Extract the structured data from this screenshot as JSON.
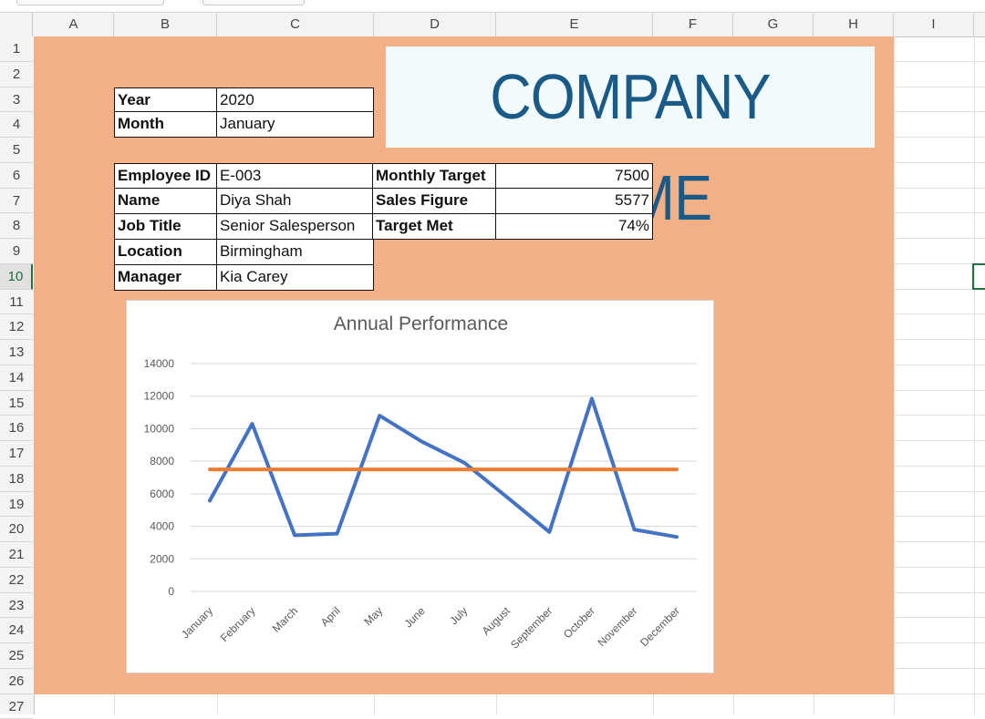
{
  "columns": [
    "A",
    "B",
    "C",
    "D",
    "E",
    "F",
    "G",
    "H",
    "I"
  ],
  "rows": [
    "1",
    "2",
    "3",
    "4",
    "5",
    "6",
    "7",
    "8",
    "9",
    "10",
    "11",
    "12",
    "13",
    "14",
    "15",
    "16",
    "17",
    "18",
    "19",
    "20",
    "21",
    "22",
    "23",
    "24",
    "25",
    "26",
    "27"
  ],
  "active_row": "10",
  "colors": {
    "panel": "#f3af86",
    "logo_text": "#1a5a86",
    "sales_line": "#4472c4",
    "target_line": "#ed7d31",
    "selection": "#217346"
  },
  "logo": {
    "text": "COMPANY NAME"
  },
  "period": {
    "year_label": "Year",
    "year_value": "2020",
    "month_label": "Month",
    "month_value": "January"
  },
  "employee": {
    "id_label": "Employee ID",
    "id_value": "E-003",
    "name_label": "Name",
    "name_value": "Diya Shah",
    "title_label": "Job Title",
    "title_value": "Senior Salesperson",
    "location_label": "Location",
    "location_value": "Birmingham",
    "manager_label": "Manager",
    "manager_value": "Kia Carey"
  },
  "targets": {
    "monthly_target_label": "Monthly Target",
    "monthly_target_value": "7500",
    "sales_figure_label": "Sales Figure",
    "sales_figure_value": "5577",
    "target_met_label": "Target Met",
    "target_met_value": "74%"
  },
  "chart_data": {
    "type": "line",
    "title": "Annual Performance",
    "categories": [
      "January",
      "February",
      "March",
      "April",
      "May",
      "June",
      "July",
      "August",
      "September",
      "October",
      "November",
      "December"
    ],
    "series": [
      {
        "values": [
          5577,
          10300,
          3450,
          3550,
          10800,
          9200,
          7900,
          5800,
          3650,
          11850,
          3800,
          3350
        ],
        "color": "#4472c4"
      },
      {
        "values": [
          7500,
          7500,
          7500,
          7500,
          7500,
          7500,
          7500,
          7500,
          7500,
          7500,
          7500,
          7500
        ],
        "color": "#ed7d31"
      }
    ],
    "ylim": [
      0,
      14000
    ],
    "yticks": [
      0,
      2000,
      4000,
      6000,
      8000,
      10000,
      12000,
      14000
    ],
    "grid": true,
    "legend": "none"
  }
}
